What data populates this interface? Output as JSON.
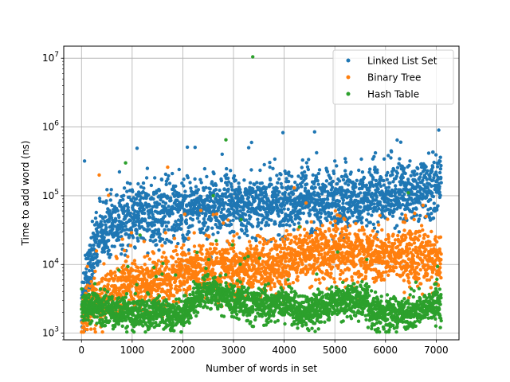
{
  "chart_data": {
    "type": "scatter",
    "xlabel": "Number of words in set",
    "ylabel": "Time to add word (ns)",
    "xlim": [
      -350,
      7450
    ],
    "ylim": [
      800,
      15000000
    ],
    "yscale": "log",
    "grid": true,
    "legend_position": "top-right",
    "x_ticks": [
      0,
      1000,
      2000,
      3000,
      4000,
      5000,
      6000,
      7000
    ],
    "x_tick_labels": [
      "0",
      "1000",
      "2000",
      "3000",
      "4000",
      "5000",
      "6000",
      "7000"
    ],
    "y_ticks": [
      1000,
      10000,
      100000,
      1000000,
      10000000
    ],
    "y_tick_labels": [
      {
        "base": "10",
        "exp": "3"
      },
      {
        "base": "10",
        "exp": "4"
      },
      {
        "base": "10",
        "exp": "5"
      },
      {
        "base": "10",
        "exp": "6"
      },
      {
        "base": "10",
        "exp": "7"
      }
    ],
    "series": [
      {
        "name": "Linked List Set",
        "color": "#1f77b4",
        "trend": [
          [
            0,
            2500
          ],
          [
            100,
            6000
          ],
          [
            300,
            20000
          ],
          [
            600,
            40000
          ],
          [
            1000,
            50000
          ],
          [
            2000,
            60000
          ],
          [
            3000,
            70000
          ],
          [
            4000,
            80000
          ],
          [
            5000,
            90000
          ],
          [
            6000,
            100000
          ],
          [
            7000,
            130000
          ],
          [
            7100,
            160000
          ]
        ],
        "spread": 0.22,
        "spikes": [
          [
            60,
            320000
          ],
          [
            1300,
            250000
          ],
          [
            4600,
            850000
          ],
          [
            6300,
            600000
          ],
          [
            7050,
            900000
          ],
          [
            3300,
            500000
          ],
          [
            5800,
            420000
          ],
          [
            2600,
            220000
          ]
        ]
      },
      {
        "name": "Binary Tree",
        "color": "#ff7f0e",
        "trend": [
          [
            0,
            2000
          ],
          [
            500,
            3500
          ],
          [
            1000,
            5000
          ],
          [
            2000,
            8000
          ],
          [
            3000,
            9000
          ],
          [
            4000,
            10000
          ],
          [
            4200,
            14000
          ],
          [
            5000,
            14000
          ],
          [
            6000,
            14000
          ],
          [
            7000,
            12000
          ],
          [
            7100,
            11000
          ]
        ],
        "spread": 0.2,
        "spikes": [
          [
            350,
            200000
          ],
          [
            1700,
            260000
          ],
          [
            4200,
            130000
          ],
          [
            6800,
            50000
          ],
          [
            2800,
            40000
          ],
          [
            5200,
            45000
          ],
          [
            1600,
            1700
          ]
        ]
      },
      {
        "name": "Hash Table",
        "color": "#2ca02c",
        "trend": [
          [
            0,
            2500
          ],
          [
            500,
            2200
          ],
          [
            1000,
            1900
          ],
          [
            2000,
            1900
          ],
          [
            2400,
            4500
          ],
          [
            3000,
            3000
          ],
          [
            3500,
            2600
          ],
          [
            4000,
            2800
          ],
          [
            4400,
            2000
          ],
          [
            5000,
            2800
          ],
          [
            5600,
            3000
          ],
          [
            5700,
            1900
          ],
          [
            6500,
            2000
          ],
          [
            7100,
            2800
          ]
        ],
        "spread": 0.12,
        "spikes": [
          [
            3380,
            10500000
          ],
          [
            2850,
            650000
          ],
          [
            870,
            300000
          ],
          [
            6450,
            110000
          ],
          [
            2600,
            100000
          ],
          [
            3150,
            45000
          ],
          [
            4300,
            35000
          ],
          [
            6600,
            5500
          ],
          [
            3600,
            1300
          ]
        ]
      }
    ]
  }
}
